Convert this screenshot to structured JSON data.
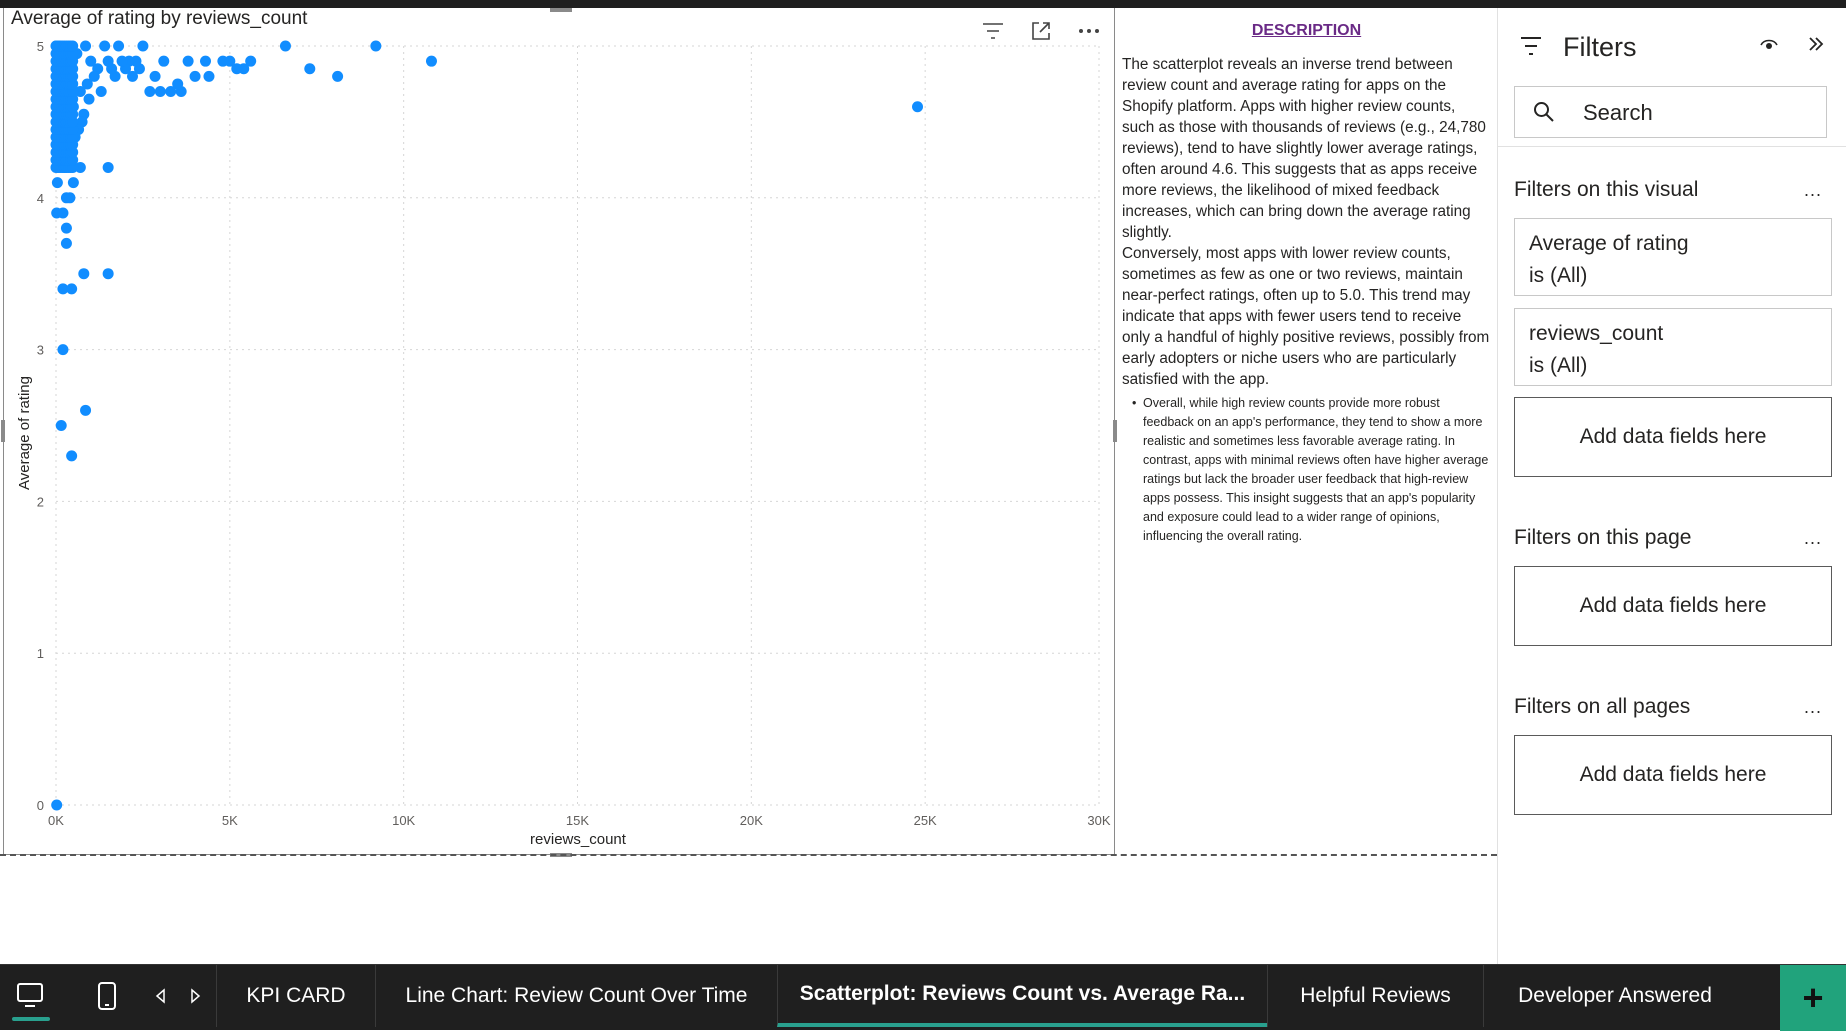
{
  "visual": {
    "title": "Average of rating by reviews_count"
  },
  "chart_data": {
    "type": "scatter",
    "title": "Average of rating by reviews_count",
    "xlabel": "reviews_count",
    "ylabel": "Average of rating",
    "xlim": [
      0,
      30000
    ],
    "ylim": [
      0,
      5
    ],
    "x_ticks": [
      "0K",
      "5K",
      "10K",
      "15K",
      "20K",
      "25K",
      "30K"
    ],
    "x_tick_values": [
      0,
      5000,
      10000,
      15000,
      20000,
      25000,
      30000
    ],
    "y_ticks": [
      "0",
      "1",
      "2",
      "3",
      "4",
      "5"
    ],
    "y_tick_values": [
      0,
      1,
      2,
      3,
      4,
      5
    ],
    "grid": true,
    "color": "#118DFF",
    "points": [
      [
        24780,
        4.6
      ],
      [
        10800,
        4.9
      ],
      [
        9200,
        5.0
      ],
      [
        8100,
        4.8
      ],
      [
        7300,
        4.85
      ],
      [
        6600,
        5.0
      ],
      [
        5600,
        4.9
      ],
      [
        5400,
        4.85
      ],
      [
        5200,
        4.85
      ],
      [
        5000,
        4.9
      ],
      [
        4800,
        4.9
      ],
      [
        4400,
        4.8
      ],
      [
        4300,
        4.9
      ],
      [
        4000,
        4.8
      ],
      [
        3800,
        4.9
      ],
      [
        3600,
        4.7
      ],
      [
        3500,
        4.75
      ],
      [
        3300,
        4.7
      ],
      [
        3100,
        4.9
      ],
      [
        3000,
        4.7
      ],
      [
        2850,
        4.8
      ],
      [
        2700,
        4.7
      ],
      [
        2500,
        5.0
      ],
      [
        2400,
        4.85
      ],
      [
        2300,
        4.9
      ],
      [
        2200,
        4.8
      ],
      [
        2100,
        4.9
      ],
      [
        2000,
        4.85
      ],
      [
        1900,
        4.9
      ],
      [
        1800,
        5.0
      ],
      [
        1700,
        4.8
      ],
      [
        1600,
        4.85
      ],
      [
        1500,
        4.9
      ],
      [
        1400,
        5.0
      ],
      [
        1300,
        4.7
      ],
      [
        1200,
        4.85
      ],
      [
        1100,
        4.8
      ],
      [
        1000,
        4.9
      ],
      [
        950,
        4.65
      ],
      [
        900,
        4.75
      ],
      [
        850,
        5.0
      ],
      [
        800,
        4.55
      ],
      [
        750,
        4.5
      ],
      [
        700,
        4.7
      ],
      [
        650,
        4.45
      ],
      [
        600,
        4.95
      ],
      [
        550,
        4.4
      ],
      [
        500,
        4.6
      ],
      [
        450,
        4.35
      ],
      [
        400,
        4.8
      ],
      [
        350,
        4.3
      ],
      [
        300,
        4.5
      ],
      [
        250,
        4.2
      ],
      [
        200,
        4.9
      ],
      [
        150,
        4.6
      ],
      [
        100,
        5.0
      ],
      [
        80,
        4.75
      ],
      [
        60,
        4.4
      ],
      [
        40,
        4.1
      ],
      [
        30,
        5.0
      ],
      [
        20,
        3.9
      ],
      [
        15,
        4.5
      ],
      [
        10,
        4.8
      ],
      [
        5,
        5.0
      ],
      [
        1500,
        4.2
      ],
      [
        1500,
        3.5
      ],
      [
        800,
        3.5
      ],
      [
        300,
        4.0
      ],
      [
        400,
        4.0
      ],
      [
        200,
        3.9
      ],
      [
        300,
        3.8
      ],
      [
        300,
        3.7
      ],
      [
        500,
        4.1
      ],
      [
        700,
        4.2
      ],
      [
        200,
        3.4
      ],
      [
        450,
        3.4
      ],
      [
        200,
        3.0
      ],
      [
        850,
        2.6
      ],
      [
        150,
        2.5
      ],
      [
        450,
        2.3
      ],
      [
        20,
        0.0
      ]
    ]
  },
  "description": {
    "title": "DESCRIPTION",
    "para1": "The scatterplot reveals an inverse trend between review count and average rating for apps on the Shopify platform. Apps with higher review counts, such as those with thousands of reviews (e.g., 24,780 reviews), tend to have slightly lower average ratings, often around 4.6. This suggests that as apps receive more reviews, the likelihood of mixed feedback increases, which can bring down the average rating slightly.",
    "para2": "Conversely, most apps with lower review counts, sometimes as few as one or two reviews, maintain near-perfect ratings, often up to 5.0. This trend may indicate that apps with fewer users tend to receive only a handful of highly positive reviews, possibly from early adopters or niche users who are particularly satisfied with the app.",
    "bullet1": "Overall, while high review counts provide more robust feedback on an app's performance, they tend to show a more realistic and sometimes less favorable average rating. In contrast, apps with minimal reviews often have higher average ratings but lack the broader user feedback that high-review apps possess. This insight suggests that an app's popularity and exposure could lead to a wider range of opinions, influencing the overall rating."
  },
  "filters": {
    "title": "Filters",
    "search_label": "Search",
    "on_visual": "Filters on this visual",
    "card1_line1": "Average of rating",
    "card1_line2": "is (All)",
    "card2_line1": "reviews_count",
    "card2_line2": "is (All)",
    "add_fields": "Add data fields here",
    "on_page": "Filters on this page",
    "on_all": "Filters on all pages",
    "more": "..."
  },
  "tabs": [
    {
      "label": "KPI CARD"
    },
    {
      "label": "Line Chart: Review Count Over Time"
    },
    {
      "label": "Scatterplot: Reviews Count vs. Average Ra..."
    },
    {
      "label": "Helpful Reviews"
    },
    {
      "label": "Developer Answered"
    }
  ],
  "colors": {
    "accent": "#29a08e",
    "add_tab": "#21a37c",
    "desc_title": "#6a2a86"
  }
}
